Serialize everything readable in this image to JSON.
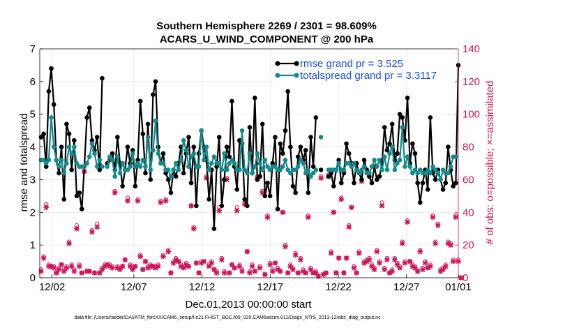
{
  "chart_data": {
    "type": "line",
    "title_line1": "Southern Hemisphere 2269 / 2301 = 98.609%",
    "title_line2": "ACARS_U_WIND_COMPONENT @ 200 hPa",
    "xlabel": "Dec.01,2013 00:00:00 start",
    "ylabel_left": "rmse and totalspread",
    "ylabel_right": "# of obs: o=possible; ×=assimilated",
    "footnote": "data file: /Users/raeder/DAI/ATM_forcXX/CAM6_setup/f.e21.FHIST_BGC.f09_025.CAM6assim.011/Diags_NTrS_2013-12/obs_diag_output.nc",
    "xlim": [
      0.6,
      31.3
    ],
    "x_ticks": [
      1.5,
      7.5,
      12.5,
      17.5,
      22.5,
      27.5,
      32.5
    ],
    "x_tick_labels": [
      "12/02",
      "12/07",
      "12/12",
      "12/17",
      "12/22",
      "12/27",
      "01/01"
    ],
    "ylim_left": [
      0,
      7
    ],
    "left_ticks": [
      "0",
      "1",
      "2",
      "3",
      "4",
      "5",
      "6",
      "7"
    ],
    "ylim_right": [
      0,
      140
    ],
    "right_ticks": [
      "0",
      "20",
      "40",
      "60",
      "80",
      "100",
      "120",
      "140"
    ],
    "legend": [
      "rmse grand pr = 3.525",
      "totalspread grand pr = 3.3117"
    ],
    "colors": {
      "rmse": "#000000",
      "spread": "#148a8a",
      "obs": "#d1145a"
    },
    "series": [
      {
        "name": "rmse",
        "values": [
          4.3,
          4.4,
          3.4,
          5.7,
          6.4,
          5.3,
          3.6,
          3.2,
          4.0,
          2.4,
          4.7,
          4.4,
          3.3,
          4.2,
          2.5,
          2.6,
          2.1,
          3.4,
          4.9,
          5.2,
          4.2,
          3.9,
          4.3,
          3.3,
          6.1,
          null,
          3.5,
          3.6,
          3.8,
          3.3,
          4.3,
          3.5,
          2.8,
          3.3,
          4.0,
          3.5,
          3.9,
          2.8,
          3.6,
          5.4,
          4.4,
          3.2,
          4.7,
          3.0,
          5.6,
          6.0,
          4.0,
          3.5,
          3.8,
          3.2,
          3.0,
          2.6,
          3.3,
          3.1,
          3.5,
          4.0,
          3.2,
          3.8,
          4.3,
          2.9,
          4.0,
          2.2,
          3.8,
          4.5,
          4.0,
          3.6,
          2.4,
          3.3,
          1.5,
          3.4,
          4.3,
          2.2,
          3.0,
          4.0,
          3.7,
          5.4,
          3.4,
          2.7,
          4.2,
          4.1,
          2.4,
          2.2,
          4.6,
          3.2,
          5.5,
          3.0,
          3.1,
          4.7,
          2.5,
          2.9,
          2.5,
          3.5,
          4.3,
          2.1,
          4.1,
          3.8,
          4.5,
          5.7,
          4.0,
          2.8,
          2.6,
          3.7,
          4.0,
          3.6,
          3.9,
          2.6,
          4.3,
          3.4,
          4.9,
          null,
          3.3,
          null,
          null,
          3.1,
          3.2,
          2.8,
          3.3,
          3.6,
          2.9,
          3.2,
          4.1,
          3.8,
          3.5,
          2.9,
          3.5,
          3.2,
          3.0,
          3.6,
          3.3,
          3.1,
          2.9,
          3.4,
          3.0,
          3.1,
          3.5,
          4.6,
          3.9,
          4.1,
          4.7,
          3.6,
          3.8,
          5.0,
          4.9,
          4.2,
          5.5,
          3.5,
          4.1,
          3.8,
          2.9,
          2.3,
          2.9,
          3.3,
          2.7,
          4.9,
          3.2,
          3.0,
          3.3,
          3.0,
          2.7,
          2.9,
          4.0,
          3.3,
          2.8,
          2.9,
          6.5
        ]
      },
      {
        "name": "totalspread",
        "values": [
          3.6,
          3.6,
          3.5,
          3.6,
          4.9,
          4.0,
          3.6,
          3.4,
          3.6,
          3.2,
          3.5,
          4.0,
          3.8,
          4.0,
          3.5,
          3.4,
          3.4,
          3.4,
          3.5,
          3.7,
          4.1,
          3.8,
          3.4,
          3.6,
          3.4,
          null,
          3.4,
          3.7,
          3.6,
          3.1,
          3.7,
          3.2,
          3.5,
          3.3,
          3.3,
          3.4,
          3.8,
          3.4,
          3.5,
          3.4,
          3.6,
          3.4,
          4.3,
          3.3,
          3.9,
          4.8,
          3.8,
          3.5,
          3.5,
          3.3,
          3.3,
          3.1,
          3.3,
          3.5,
          3.3,
          3.6,
          4.2,
          3.9,
          3.4,
          3.7,
          3.8,
          3.4,
          3.4,
          4.5,
          3.6,
          4.0,
          3.3,
          3.5,
          3.7,
          3.5,
          3.5,
          3.3,
          3.8,
          3.3,
          3.5,
          3.6,
          3.5,
          3.3,
          3.3,
          4.5,
          3.3,
          3.2,
          3.8,
          3.2,
          3.4,
          3.8,
          3.5,
          3.3,
          3.6,
          3.4,
          3.3,
          3.4,
          3.4,
          3.3,
          3.3,
          3.4,
          3.6,
          3.3,
          3.2,
          3.3,
          3.3,
          3.4,
          3.6,
          3.5,
          3.2,
          3.3,
          3.1,
          3.2,
          3.3,
          null,
          4.3,
          null,
          null,
          3.3,
          3.3,
          3.3,
          3.3,
          3.5,
          3.3,
          3.3,
          3.5,
          3.5,
          3.4,
          3.5,
          3.3,
          3.2,
          3.3,
          3.4,
          3.2,
          3.2,
          3.4,
          3.6,
          3.4,
          3.6,
          3.3,
          3.7,
          3.3,
          3.8,
          4.0,
          3.3,
          3.5,
          3.6,
          4.6,
          3.4,
          3.7,
          3.4,
          3.2,
          3.3,
          3.2,
          3.3,
          3.2,
          3.2,
          3.3,
          3.2,
          3.4,
          3.3,
          3.2,
          3.0,
          3.3,
          3.2,
          3.2,
          3.4,
          3.7,
          3.7
        ]
      },
      {
        "name": "obs_possible",
        "values": [
          5,
          13,
          45,
          8,
          7,
          7,
          3,
          6,
          8,
          5,
          7,
          22,
          8,
          5,
          32,
          8,
          3,
          65,
          4,
          4,
          29,
          3,
          33,
          3,
          6,
          8,
          8,
          8,
          7,
          53,
          7,
          6,
          7,
          11,
          49,
          8,
          6,
          7,
          48,
          14,
          5,
          10,
          7,
          8,
          7,
          7,
          8,
          47,
          14,
          48,
          17,
          3,
          10,
          12,
          10,
          8,
          7,
          9,
          7,
          44,
          31,
          9,
          3,
          10,
          10,
          62,
          8,
          10,
          5,
          4,
          43,
          12,
          4,
          61,
          3,
          8,
          6,
          43,
          8,
          5,
          46,
          16,
          4,
          8,
          4,
          62,
          7,
          53,
          2,
          38,
          9,
          5,
          9,
          6,
          4,
          40,
          20,
          3,
          8,
          6,
          15,
          3,
          12,
          5,
          3,
          38,
          6,
          3,
          4,
          1,
          62,
          2,
          3,
          63,
          16,
          40,
          3,
          12,
          49,
          3,
          12,
          32,
          43,
          7,
          3,
          16,
          60,
          10,
          11,
          12,
          8,
          6,
          17,
          10,
          46,
          6,
          12,
          3,
          5,
          12,
          9,
          7,
          22,
          10,
          35,
          10,
          8,
          7,
          4,
          17,
          6,
          10,
          6,
          8,
          38,
          22,
          33,
          5,
          6,
          8,
          22,
          21,
          11,
          38,
          11,
          0
        ]
      },
      {
        "name": "obs_assimilated",
        "values": [
          4,
          12,
          43,
          7,
          7,
          6,
          3,
          5,
          8,
          4,
          6,
          21,
          7,
          4,
          30,
          7,
          3,
          65,
          4,
          4,
          28,
          3,
          31,
          3,
          5,
          7,
          8,
          7,
          6,
          52,
          6,
          5,
          7,
          11,
          47,
          7,
          5,
          7,
          47,
          13,
          5,
          10,
          6,
          7,
          7,
          6,
          7,
          46,
          13,
          47,
          16,
          3,
          9,
          11,
          10,
          7,
          6,
          8,
          7,
          44,
          30,
          9,
          3,
          9,
          10,
          61,
          7,
          9,
          5,
          3,
          41,
          11,
          3,
          60,
          3,
          8,
          6,
          41,
          7,
          4,
          45,
          16,
          3,
          7,
          4,
          61,
          6,
          52,
          2,
          37,
          8,
          4,
          9,
          5,
          4,
          40,
          19,
          3,
          7,
          5,
          14,
          3,
          11,
          4,
          3,
          37,
          5,
          3,
          3,
          1,
          61,
          2,
          3,
          62,
          15,
          40,
          3,
          12,
          48,
          3,
          12,
          31,
          43,
          6,
          3,
          15,
          59,
          9,
          10,
          11,
          7,
          5,
          16,
          9,
          44,
          5,
          11,
          3,
          4,
          11,
          8,
          6,
          21,
          9,
          34,
          10,
          7,
          6,
          4,
          16,
          5,
          9,
          6,
          7,
          37,
          21,
          32,
          4,
          5,
          7,
          21,
          20,
          10,
          37,
          10,
          0
        ]
      }
    ]
  }
}
